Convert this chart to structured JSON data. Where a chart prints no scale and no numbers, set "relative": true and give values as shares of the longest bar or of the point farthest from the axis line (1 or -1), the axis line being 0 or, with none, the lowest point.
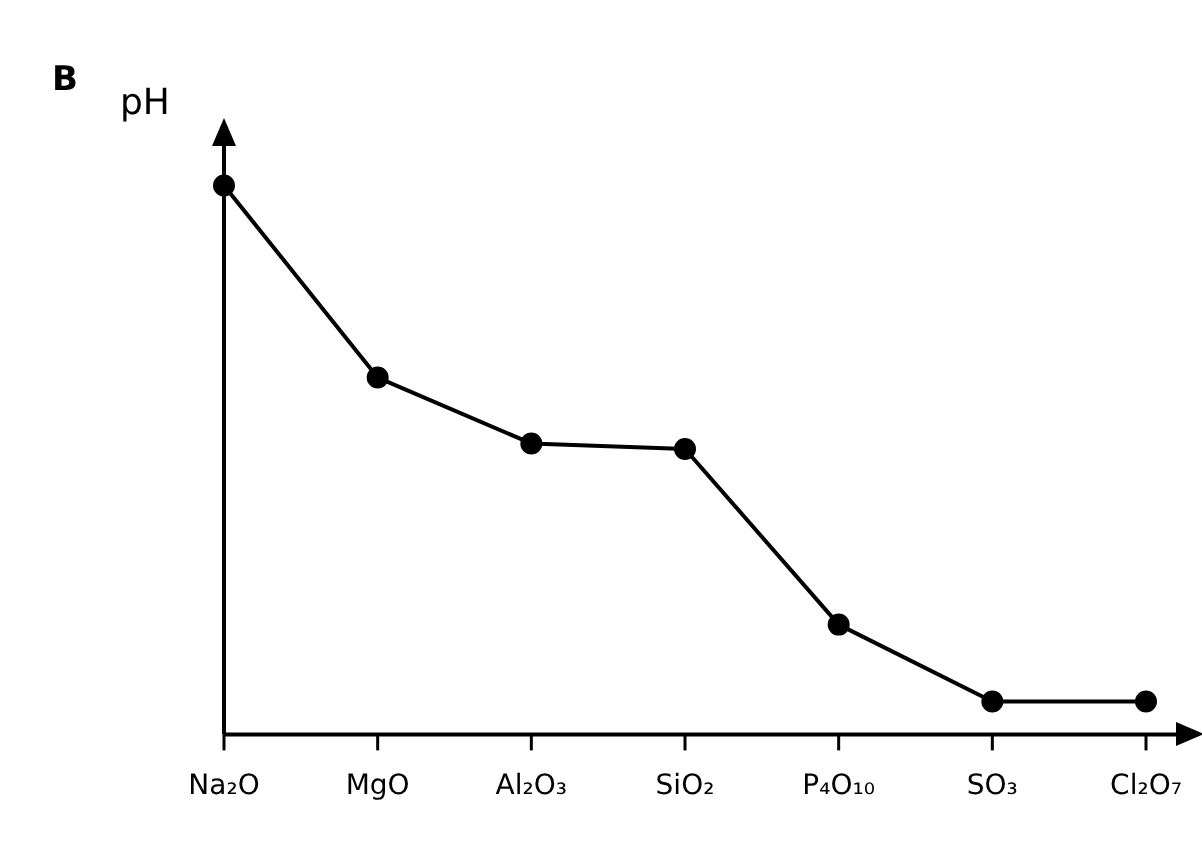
{
  "chart_data": {
    "type": "line",
    "title": "B",
    "ylabel": "pH",
    "categories": [
      "Na₂O",
      "MgO",
      "Al₂O₃",
      "SiO₂",
      "P₄O₁₀",
      "SO₃",
      "Cl₂O₇"
    ],
    "values": [
      1,
      0.65,
      0.53,
      0.52,
      0.2,
      0.06,
      0.06
    ],
    "color": "#000000",
    "relative": true,
    "marker": "circle"
  }
}
